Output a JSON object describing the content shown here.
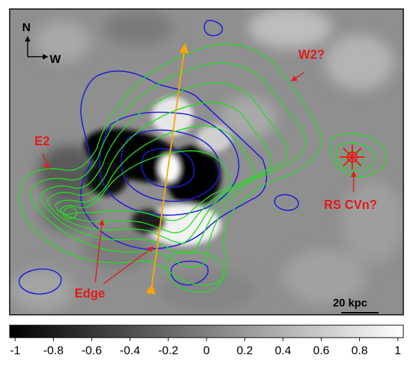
{
  "image": {
    "description_labels": {
      "compass_north": "N",
      "compass_west": "W",
      "label_w2": "W2?",
      "label_e2": "E2",
      "label_rscvn": "RS CVn?",
      "label_edge": "Edge",
      "scalebar": "20 kpc"
    },
    "colors": {
      "green_contour": "#22dd22",
      "blue_contour": "#1c1cdc",
      "red_annotation": "#e41a1a",
      "orange_line": "#ffa500"
    }
  },
  "colorbar": {
    "ticks": [
      "-1",
      "-0.8",
      "-0.6",
      "-0.4",
      "-0.2",
      "0",
      "0.2",
      "0.4",
      "0.6",
      "0.8",
      "1"
    ]
  }
}
